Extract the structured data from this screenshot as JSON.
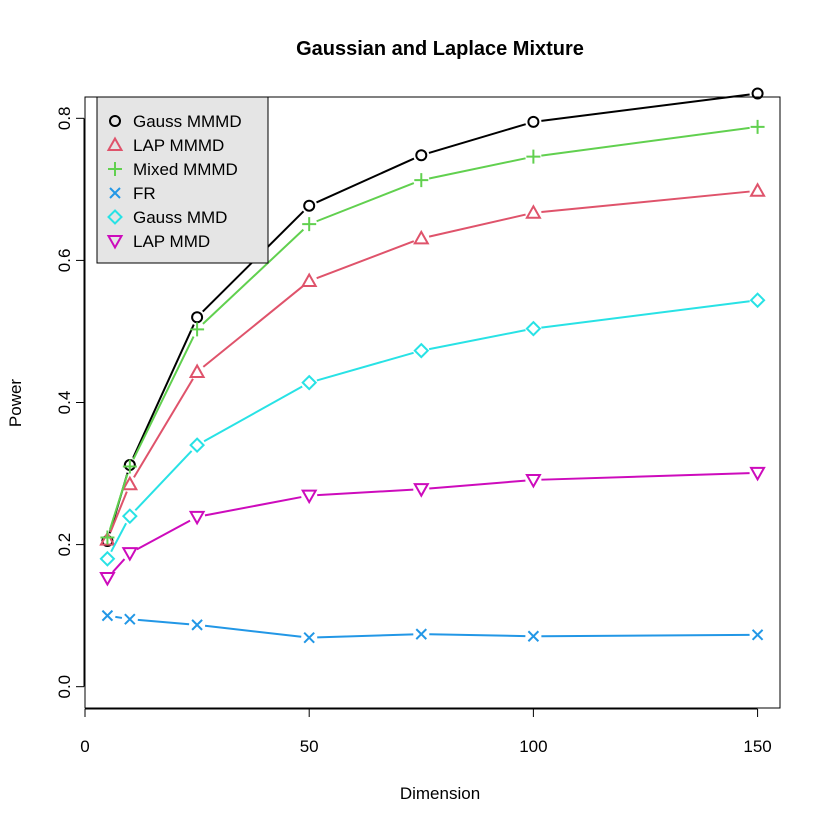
{
  "chart_data": {
    "type": "line",
    "title": "Gaussian and Laplace Mixture",
    "xlabel": "Dimension",
    "ylabel": "Power",
    "xlim": [
      0,
      155
    ],
    "ylim": [
      -0.03,
      0.83
    ],
    "xticks": [
      0,
      50,
      100,
      150
    ],
    "yticks": [
      0.0,
      0.2,
      0.4,
      0.6,
      0.8
    ],
    "xtick_labels": [
      "0",
      "50",
      "100",
      "150"
    ],
    "ytick_labels": [
      "0.0",
      "0.2",
      "0.4",
      "0.6",
      "0.8"
    ],
    "grid": false,
    "legend_position": "top-left",
    "x": [
      5,
      10,
      25,
      50,
      75,
      100,
      150
    ],
    "series": [
      {
        "name": "Gauss MMMD",
        "color": "#000000",
        "marker": "circle",
        "values": [
          0.205,
          0.312,
          0.52,
          0.677,
          0.748,
          0.795,
          0.835
        ]
      },
      {
        "name": "LAP MMMD",
        "color": "#df536b",
        "marker": "triangle-up",
        "values": [
          0.207,
          0.285,
          0.443,
          0.571,
          0.631,
          0.667,
          0.698
        ]
      },
      {
        "name": "Mixed MMMD",
        "color": "#61d04f",
        "marker": "plus",
        "values": [
          0.21,
          0.31,
          0.503,
          0.651,
          0.713,
          0.746,
          0.788
        ]
      },
      {
        "name": "FR",
        "color": "#2297e6",
        "marker": "cross",
        "values": [
          0.1,
          0.095,
          0.087,
          0.069,
          0.074,
          0.071,
          0.073
        ]
      },
      {
        "name": "Gauss MMD",
        "color": "#28e2e5",
        "marker": "diamond",
        "values": [
          0.18,
          0.24,
          0.34,
          0.428,
          0.473,
          0.504,
          0.544
        ]
      },
      {
        "name": "LAP MMD",
        "color": "#cd0bbc",
        "marker": "triangle-down",
        "values": [
          0.153,
          0.188,
          0.239,
          0.269,
          0.278,
          0.291,
          0.301
        ]
      }
    ]
  }
}
